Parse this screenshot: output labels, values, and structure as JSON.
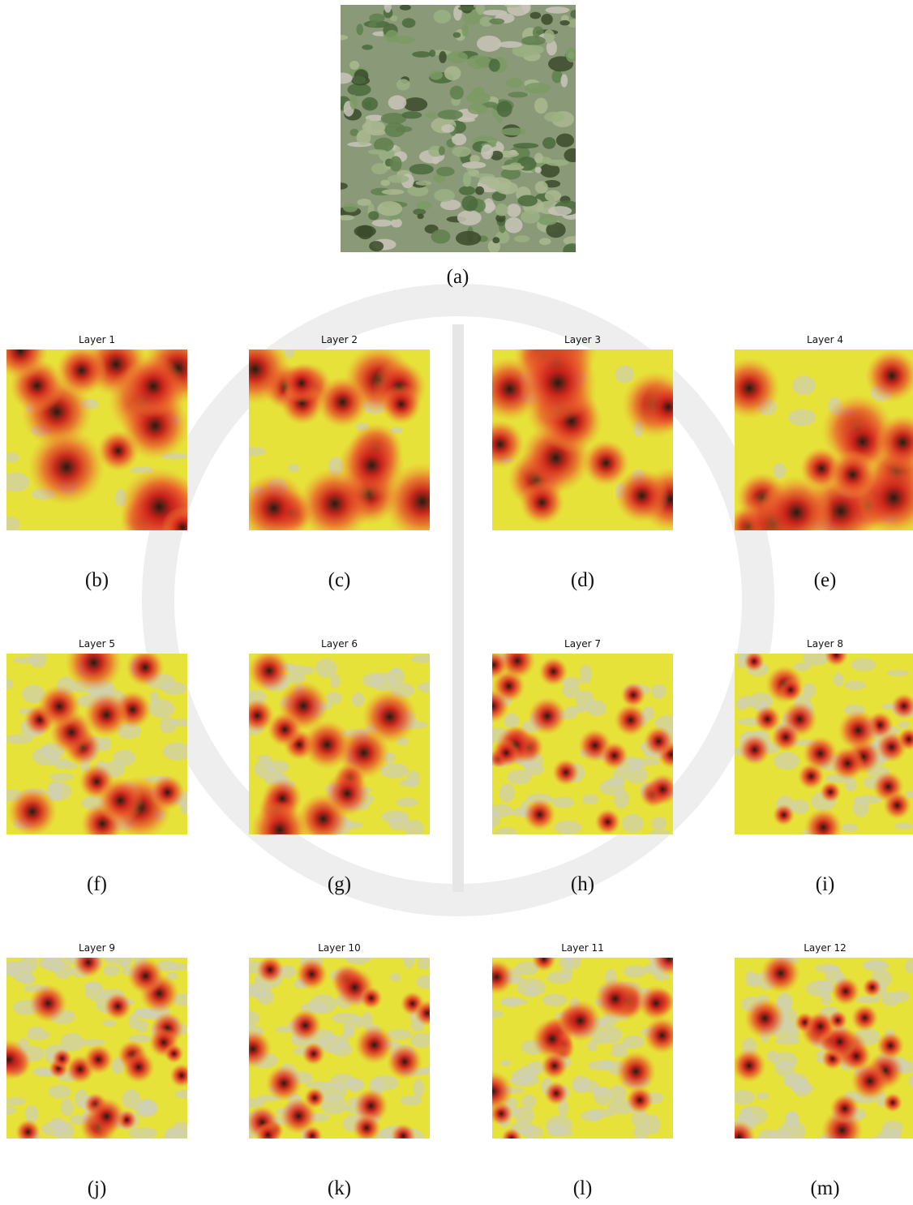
{
  "figure": {
    "image_caption": "(a)",
    "panels": [
      {
        "title": "Layer 1",
        "caption": "(b)"
      },
      {
        "title": "Layer 2",
        "caption": "(c)"
      },
      {
        "title": "Layer 3",
        "caption": "(d)"
      },
      {
        "title": "Layer 4",
        "caption": "(e)"
      },
      {
        "title": "Layer 5",
        "caption": "(f)"
      },
      {
        "title": "Layer 6",
        "caption": "(g)"
      },
      {
        "title": "Layer 7",
        "caption": "(h)"
      },
      {
        "title": "Layer 8",
        "caption": "(i)"
      },
      {
        "title": "Layer 9",
        "caption": "(j)"
      },
      {
        "title": "Layer 10",
        "caption": "(k)"
      },
      {
        "title": "Layer 11",
        "caption": "(l)"
      },
      {
        "title": "Layer 12",
        "caption": "(m)"
      }
    ]
  }
}
